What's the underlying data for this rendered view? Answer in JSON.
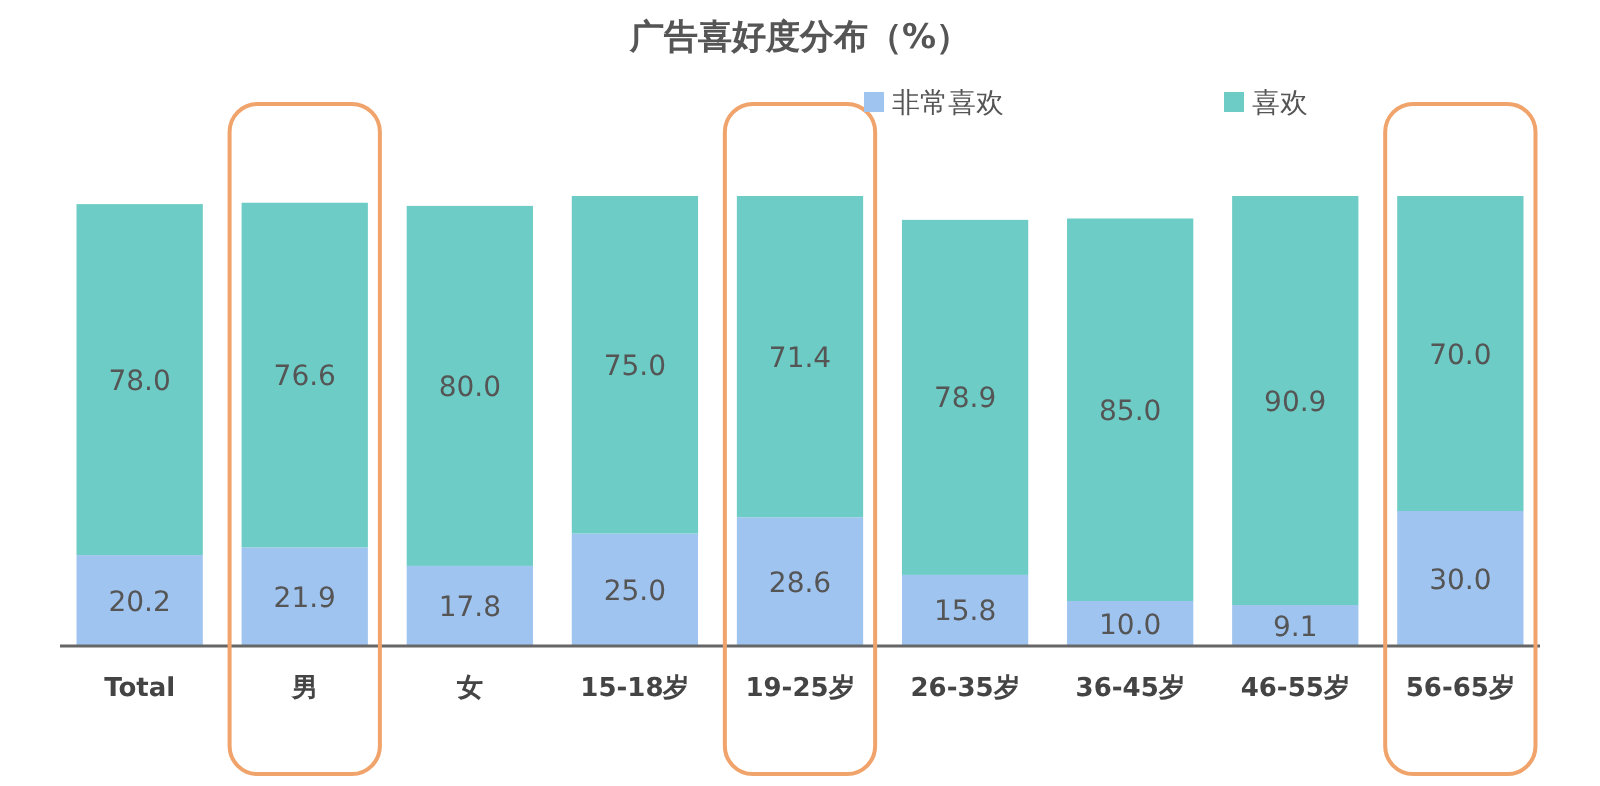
{
  "chart_data": {
    "type": "bar",
    "title": "广告喜好度分布（%）",
    "stacked": true,
    "legend": "top",
    "categories": [
      "Total",
      "男",
      "女",
      "15-18岁",
      "19-25岁",
      "26-35岁",
      "36-45岁",
      "46-55岁",
      "56-65岁"
    ],
    "series": [
      {
        "name": "非常喜欢",
        "color": "#a0c4f0",
        "values": [
          20.2,
          21.9,
          17.8,
          25.0,
          28.6,
          15.8,
          10.0,
          9.1,
          30.0
        ],
        "value_labels": [
          "20.2",
          "21.9",
          "17.8",
          "25.0",
          "28.6",
          "15.8",
          "10.0",
          "9.1",
          "30.0"
        ]
      },
      {
        "name": "喜欢",
        "color": "#6dcdc6",
        "values": [
          78.0,
          76.6,
          80.0,
          75.0,
          71.4,
          78.9,
          85.0,
          90.9,
          70.0
        ],
        "value_labels": [
          "78.0",
          "76.6",
          "80.0",
          "75.0",
          "71.4",
          "78.9",
          "85.0",
          "90.9",
          "70.0"
        ]
      }
    ]
  }
}
